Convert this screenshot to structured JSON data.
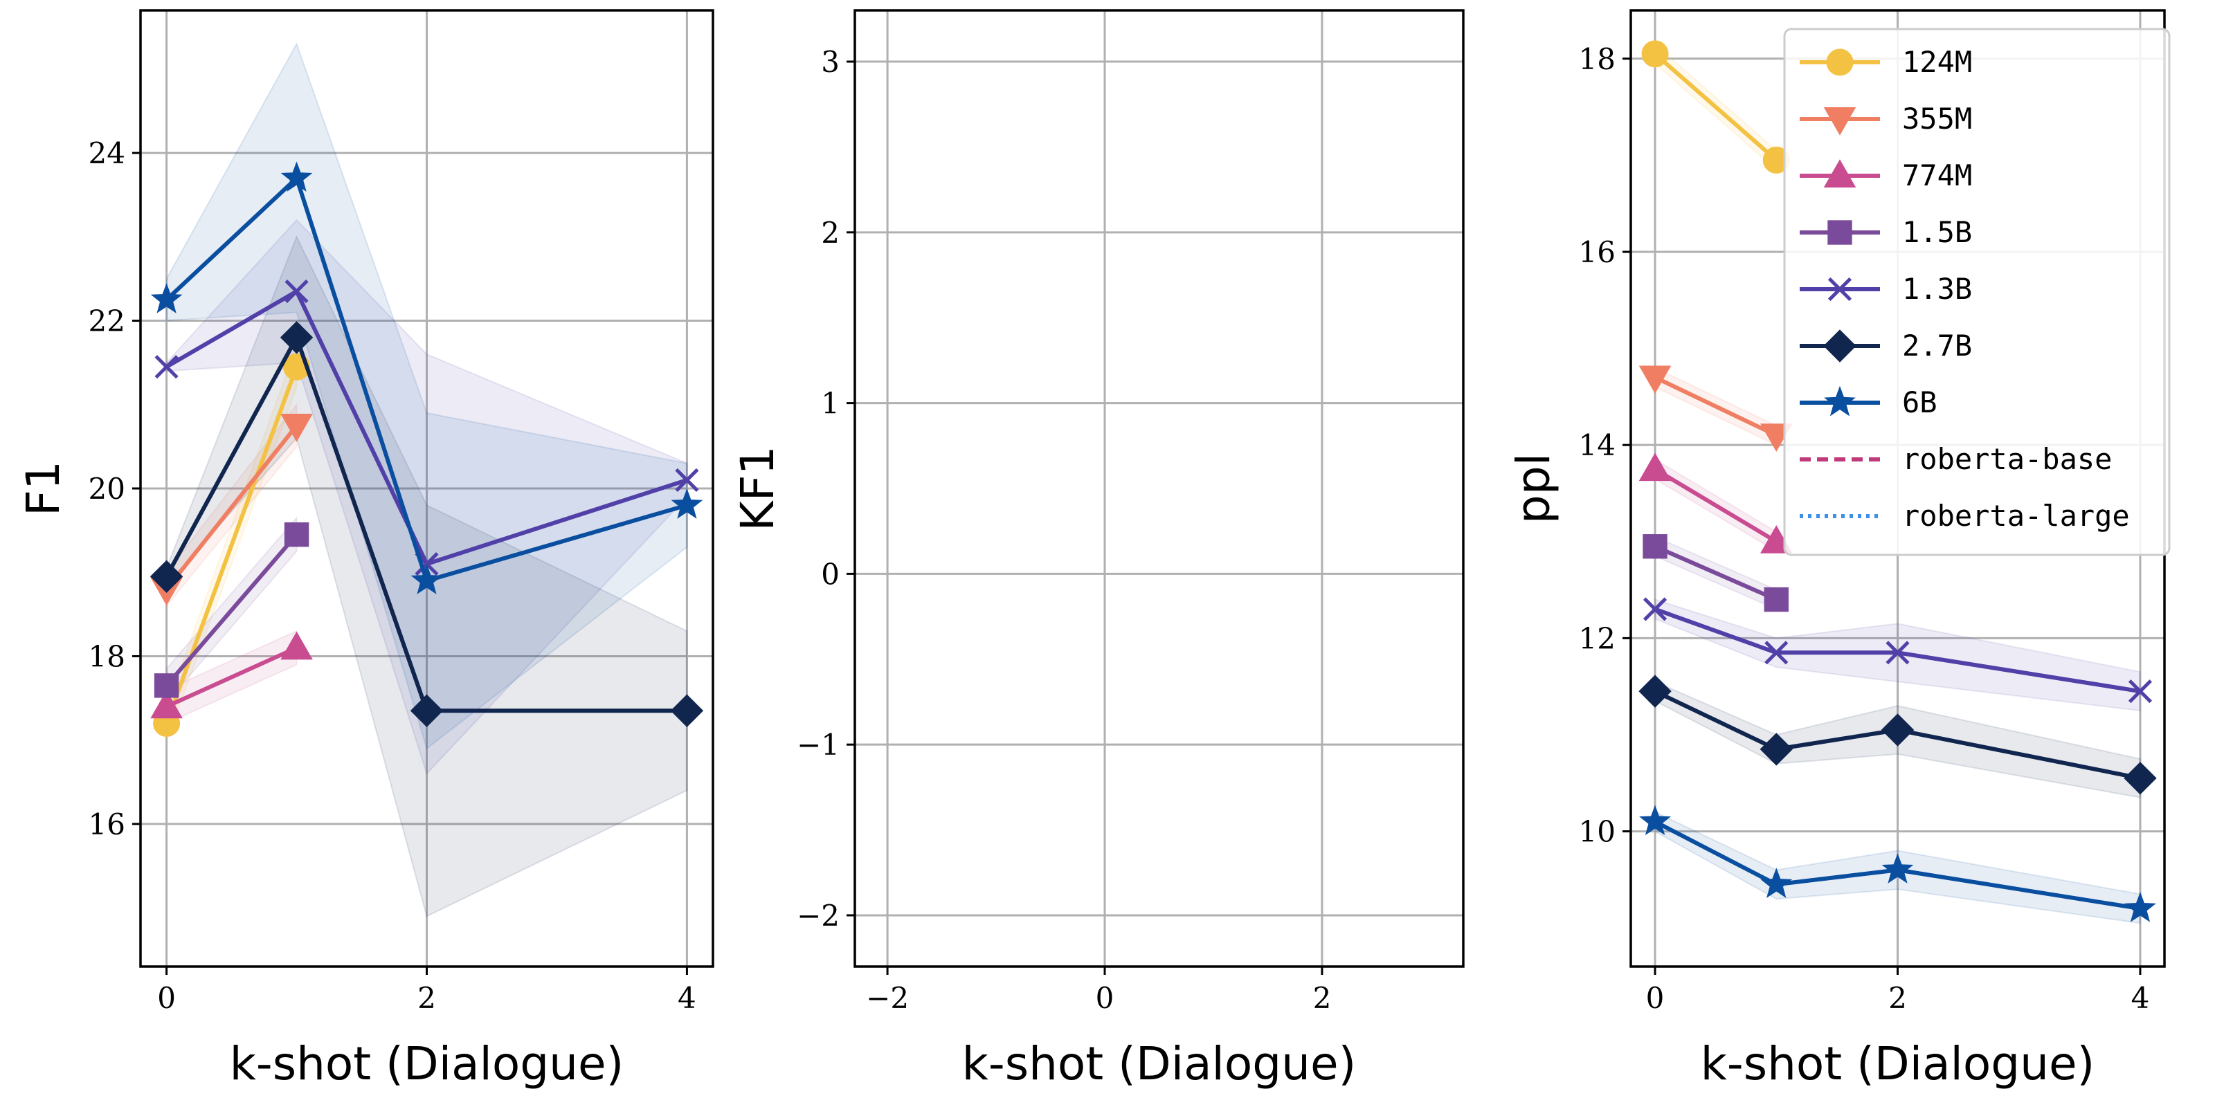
{
  "chart_data": [
    {
      "type": "line",
      "title": "",
      "xlabel": "k-shot (Dialogue)",
      "ylabel": "F1",
      "xlim": [
        -0.2,
        4.2
      ],
      "ylim": [
        14.3,
        25.7
      ],
      "xticks": [
        "0",
        "2",
        "4"
      ],
      "yticks": [
        "16",
        "18",
        "20",
        "22",
        "24"
      ],
      "grid": true,
      "series": [
        {
          "name": "124M",
          "x": [
            0,
            1
          ],
          "values": [
            17.2,
            21.45
          ],
          "band": [
            [
              17.0,
              17.4
            ],
            [
              21.2,
              21.7
            ]
          ]
        },
        {
          "name": "355M",
          "x": [
            0,
            1
          ],
          "values": [
            18.8,
            20.75
          ],
          "band": [
            [
              18.6,
              19.0
            ],
            [
              20.5,
              21.0
            ]
          ]
        },
        {
          "name": "774M",
          "x": [
            0,
            1
          ],
          "values": [
            17.4,
            18.1
          ],
          "band": [
            [
              17.2,
              17.6
            ],
            [
              17.9,
              18.3
            ]
          ]
        },
        {
          "name": "1.5B",
          "x": [
            0,
            1
          ],
          "values": [
            17.65,
            19.45
          ],
          "band": [
            [
              17.45,
              17.85
            ],
            [
              19.25,
              19.65
            ]
          ]
        },
        {
          "name": "1.3B",
          "x": [
            0,
            1,
            2,
            4
          ],
          "values": [
            21.45,
            22.35,
            19.1,
            20.1
          ],
          "band": [
            [
              21.4,
              21.5
            ],
            [
              21.5,
              23.2
            ],
            [
              16.6,
              21.6
            ],
            [
              19.9,
              20.3
            ]
          ]
        },
        {
          "name": "2.7B",
          "x": [
            0,
            1,
            2,
            4
          ],
          "values": [
            18.95,
            21.8,
            17.35,
            17.35
          ],
          "band": [
            [
              18.85,
              19.05
            ],
            [
              20.6,
              23.0
            ],
            [
              14.9,
              19.8
            ],
            [
              16.4,
              18.3
            ]
          ]
        },
        {
          "name": "6B",
          "x": [
            0,
            1,
            2,
            4
          ],
          "values": [
            22.25,
            23.7,
            18.9,
            19.8
          ],
          "band": [
            [
              22.0,
              22.5
            ],
            [
              22.1,
              25.3
            ],
            [
              16.9,
              20.9
            ],
            [
              19.3,
              20.3
            ]
          ]
        }
      ]
    },
    {
      "type": "line",
      "title": "",
      "xlabel": "k-shot (Dialogue)",
      "ylabel": "KF1",
      "xlim": [
        -2.3,
        3.3
      ],
      "ylim": [
        -2.3,
        3.3
      ],
      "xticks": [
        "−2",
        "0",
        "2"
      ],
      "yticks": [
        "−2",
        "−1",
        "0",
        "1",
        "2",
        "3"
      ],
      "grid": true,
      "series": []
    },
    {
      "type": "line",
      "title": "",
      "xlabel": "k-shot (Dialogue)",
      "ylabel": "ppl",
      "xlim": [
        -0.2,
        4.2
      ],
      "ylim": [
        8.6,
        18.5
      ],
      "xticks": [
        "0",
        "2",
        "4"
      ],
      "yticks": [
        "10",
        "12",
        "14",
        "16",
        "18"
      ],
      "grid": true,
      "legend": "top-right",
      "series": [
        {
          "name": "124M",
          "x": [
            0,
            1
          ],
          "values": [
            18.05,
            16.95
          ],
          "band": [
            [
              17.95,
              18.15
            ],
            [
              16.85,
              17.05
            ]
          ]
        },
        {
          "name": "355M",
          "x": [
            0,
            1
          ],
          "values": [
            14.7,
            14.1
          ],
          "band": [
            [
              14.6,
              14.8
            ],
            [
              14.0,
              14.2
            ]
          ]
        },
        {
          "name": "774M",
          "x": [
            0,
            1
          ],
          "values": [
            13.75,
            13.0
          ],
          "band": [
            [
              13.65,
              13.85
            ],
            [
              12.9,
              13.1
            ]
          ]
        },
        {
          "name": "1.5B",
          "x": [
            0,
            1
          ],
          "values": [
            12.95,
            12.4
          ],
          "band": [
            [
              12.85,
              13.05
            ],
            [
              12.3,
              12.5
            ]
          ]
        },
        {
          "name": "1.3B",
          "x": [
            0,
            1,
            2,
            4
          ],
          "values": [
            12.3,
            11.85,
            11.85,
            11.45
          ],
          "band": [
            [
              12.2,
              12.4
            ],
            [
              11.7,
              12.0
            ],
            [
              11.55,
              12.15
            ],
            [
              11.25,
              11.65
            ]
          ]
        },
        {
          "name": "2.7B",
          "x": [
            0,
            1,
            2,
            4
          ],
          "values": [
            11.45,
            10.85,
            11.05,
            10.55
          ],
          "band": [
            [
              11.35,
              11.55
            ],
            [
              10.7,
              11.0
            ],
            [
              10.8,
              11.3
            ],
            [
              10.35,
              10.75
            ]
          ]
        },
        {
          "name": "6B",
          "x": [
            0,
            1,
            2,
            4
          ],
          "values": [
            10.1,
            9.45,
            9.6,
            9.2
          ],
          "band": [
            [
              10.0,
              10.2
            ],
            [
              9.3,
              9.6
            ],
            [
              9.4,
              9.8
            ],
            [
              9.05,
              9.35
            ]
          ]
        },
        {
          "name": "roberta-base",
          "x": [],
          "values": []
        },
        {
          "name": "roberta-large",
          "x": [],
          "values": []
        }
      ]
    }
  ],
  "styles": {
    "124M": {
      "color": "#f4c242",
      "marker": "circle",
      "dash": "solid"
    },
    "355M": {
      "color": "#f07e62",
      "marker": "triangle-down",
      "dash": "solid"
    },
    "774M": {
      "color": "#c94c91",
      "marker": "triangle-up",
      "dash": "solid"
    },
    "1.5B": {
      "color": "#7a4b9a",
      "marker": "square",
      "dash": "solid"
    },
    "1.3B": {
      "color": "#5040a8",
      "marker": "x",
      "dash": "solid"
    },
    "2.7B": {
      "color": "#11264f",
      "marker": "diamond",
      "dash": "solid"
    },
    "6B": {
      "color": "#0a4ea0",
      "marker": "star",
      "dash": "solid"
    },
    "roberta-base": {
      "color": "#c0397a",
      "marker": "none",
      "dash": "dashed"
    },
    "roberta-large": {
      "color": "#3d8fe8",
      "marker": "none",
      "dash": "dotted"
    }
  }
}
